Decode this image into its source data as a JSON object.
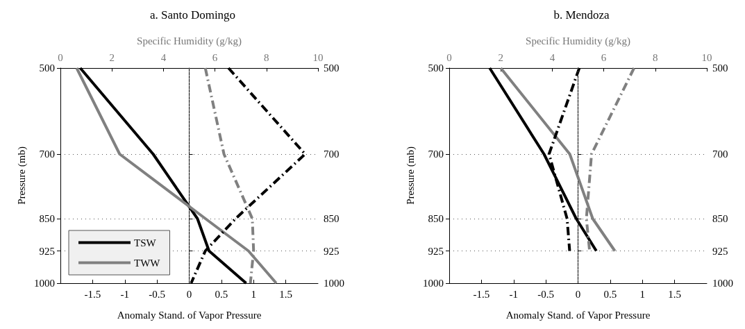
{
  "chart_data": [
    {
      "type": "line",
      "title": "a. Santo Domingo",
      "xlabel": "Anomaly Stand. of Vapor Pressure",
      "x2label": "Specific Humidity (g/kg)",
      "ylabel": "Pressure (mb)",
      "xlim": [
        -2,
        2
      ],
      "xticks": [
        -1.5,
        -1,
        -0.5,
        0,
        0.5,
        1,
        1.5
      ],
      "x2lim": [
        0,
        10
      ],
      "x2ticks": [
        0,
        2,
        4,
        6,
        8,
        10
      ],
      "ylim": [
        1000,
        500
      ],
      "yticks": [
        500,
        700,
        850,
        925,
        1000
      ],
      "y2lim": [
        1000,
        500
      ],
      "y2ticks": [
        500,
        700,
        850,
        925,
        1000
      ],
      "grid": "y",
      "legend": "bottom left",
      "marker": "none",
      "ref_lines": [
        {
          "axis": "x",
          "value": 0,
          "line_style": "dotted",
          "color": "#808080"
        }
      ],
      "series": [
        {
          "name": "TSW",
          "color": "#000000",
          "axis": "x2",
          "line_style": "solid",
          "x": [
            0.77,
            3.6,
            5.32,
            5.77,
            7.21
          ],
          "values": [
            500,
            700,
            850,
            925,
            1000
          ]
        },
        {
          "name": "TWW",
          "color": "#808080",
          "axis": "x2",
          "line_style": "solid",
          "x": [
            0.63,
            2.3,
            5.63,
            7.3,
            8.38
          ],
          "values": [
            500,
            700,
            850,
            925,
            1000
          ]
        },
        {
          "color": "#000000",
          "line_style": "dashed",
          "x": [
            0.61,
            1.8,
            0.72,
            0.25,
            0.03
          ],
          "values": [
            500,
            700,
            850,
            925,
            1000
          ]
        },
        {
          "color": "#808080",
          "line_style": "dashed",
          "x": [
            0.25,
            0.54,
            0.98,
            1.0,
            0.95
          ],
          "values": [
            500,
            700,
            850,
            925,
            1000
          ]
        }
      ]
    },
    {
      "type": "line",
      "title": "b. Mendoza",
      "xlabel": "Anomaly Stand. of Vapor Pressure",
      "x2label": "Specific Humidity (g/kg)",
      "ylabel": "Pressure (mb)",
      "xlim": [
        -2,
        2
      ],
      "xticks": [
        -1.5,
        -1,
        -0.5,
        0,
        0.5,
        1,
        1.5
      ],
      "x2lim": [
        0,
        10
      ],
      "x2ticks": [
        0,
        2,
        4,
        6,
        8,
        10
      ],
      "ylim": [
        1000,
        500
      ],
      "yticks": [
        500,
        700,
        850,
        925,
        1000
      ],
      "y2lim": [
        1000,
        500
      ],
      "y2ticks": [
        500,
        700,
        850,
        925,
        1000
      ],
      "grid": "y",
      "marker": "none",
      "ref_lines": [
        {
          "axis": "x",
          "value": 0,
          "line_style": "dotted",
          "color": "#808080"
        }
      ],
      "series": [
        {
          "color": "#000000",
          "axis": "x2",
          "line_style": "solid",
          "x": [
            1.57,
            3.68,
            4.93,
            5.71
          ],
          "values": [
            500,
            700,
            850,
            925
          ]
        },
        {
          "color": "#808080",
          "axis": "x2",
          "line_style": "solid",
          "x": [
            2.0,
            4.68,
            5.57,
            6.43
          ],
          "values": [
            500,
            700,
            850,
            925
          ]
        },
        {
          "color": "#000000",
          "line_style": "dashed",
          "x": [
            0.02,
            -0.45,
            -0.17,
            -0.13
          ],
          "values": [
            500,
            700,
            850,
            925
          ]
        },
        {
          "color": "#808080",
          "line_style": "dashed",
          "x": [
            0.87,
            0.21,
            0.13,
            0.18
          ],
          "values": [
            500,
            700,
            850,
            925
          ]
        }
      ]
    }
  ]
}
